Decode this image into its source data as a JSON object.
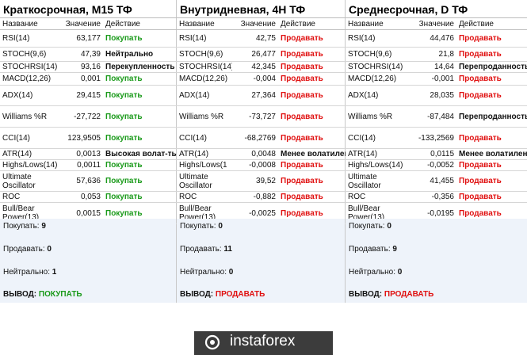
{
  "headers": {
    "name": "Название",
    "value": "Значение",
    "action": "Действие"
  },
  "panels": [
    {
      "title": "Краткосрочная, M15 ТФ",
      "rows": [
        {
          "name": "RSI(14)",
          "value": "63,177",
          "action": "Покупать",
          "kind": "buy"
        },
        {
          "name": "STOCH(9,6)",
          "value": "47,39",
          "action": "Нейтрально",
          "kind": "neutral"
        },
        {
          "name": "STOCHRSI(14)",
          "value": "93,16",
          "action": "Перекупленность",
          "kind": "neutral"
        },
        {
          "name": "MACD(12,26)",
          "value": "0,001",
          "action": "Покупать",
          "kind": "buy"
        },
        {
          "name": "ADX(14)",
          "value": "29,415",
          "action": "Покупать",
          "kind": "buy"
        },
        {
          "name": "Williams %R",
          "value": "-27,722",
          "action": "Покупать",
          "kind": "buy"
        },
        {
          "name": "CCI(14)",
          "value": "123,9505",
          "action": "Покупать",
          "kind": "buy"
        },
        {
          "name": "ATR(14)",
          "value": "0,0013",
          "action": "Высокая волат-ть",
          "kind": "neutral"
        },
        {
          "name": "Highs/Lows(14)",
          "value": "0,0011",
          "action": "Покупать",
          "kind": "buy"
        },
        {
          "name": "Ultimate Oscillator",
          "value": "57,636",
          "action": "Покупать",
          "kind": "buy"
        },
        {
          "name": "ROC",
          "value": "0,053",
          "action": "Покупать",
          "kind": "buy"
        },
        {
          "name": "Bull/Bear Power(13)",
          "value": "0,0015",
          "action": "Покупать",
          "kind": "buy"
        }
      ],
      "summary": {
        "buy_label": "Покупать:",
        "buy": "9",
        "sell_label": "Продавать:",
        "sell": "0",
        "neutral_label": "Нейтрально:",
        "neutral": "1",
        "verdict_label": "ВЫВОД:",
        "verdict": "ПОКУПАТЬ",
        "verdict_kind": "buy"
      }
    },
    {
      "title": "Внутридневная, 4H ТФ",
      "rows": [
        {
          "name": "RSI(14)",
          "value": "42,75",
          "action": "Продавать",
          "kind": "sell"
        },
        {
          "name": "STOCH(9,6)",
          "value": "26,477",
          "action": "Продавать",
          "kind": "sell"
        },
        {
          "name": "STOCHRSI(14)",
          "value": "42,345",
          "action": "Продавать",
          "kind": "sell"
        },
        {
          "name": "MACD(12,26)",
          "value": "-0,004",
          "action": "Продавать",
          "kind": "sell"
        },
        {
          "name": "ADX(14)",
          "value": "27,364",
          "action": "Продавать",
          "kind": "sell"
        },
        {
          "name": "Williams %R",
          "value": "-73,727",
          "action": "Продавать",
          "kind": "sell"
        },
        {
          "name": "CCI(14)",
          "value": "-68,2769",
          "action": "Продавать",
          "kind": "sell"
        },
        {
          "name": "ATR(14)",
          "value": "0,0048",
          "action": "Менее волатилен",
          "kind": "neutral"
        },
        {
          "name": "Highs/Lows(1",
          "value": "-0,0008",
          "action": "Продавать",
          "kind": "sell"
        },
        {
          "name": "Ultimate Oscillator",
          "value": "39,52",
          "action": "Продавать",
          "kind": "sell"
        },
        {
          "name": "ROC",
          "value": "-0,882",
          "action": "Продавать",
          "kind": "sell"
        },
        {
          "name": "Bull/Bear Power(13)",
          "value": "-0,0025",
          "action": "Продавать",
          "kind": "sell"
        }
      ],
      "summary": {
        "buy_label": "Покупать:",
        "buy": "0",
        "sell_label": "Продавать:",
        "sell": "11",
        "neutral_label": "Нейтрально:",
        "neutral": "0",
        "verdict_label": "ВЫВОД:",
        "verdict": "ПРОДАВАТЬ",
        "verdict_kind": "sell"
      }
    },
    {
      "title": "Среднесрочная, D ТФ",
      "rows": [
        {
          "name": "RSI(14)",
          "value": "44,476",
          "action": "Продавать",
          "kind": "sell"
        },
        {
          "name": "STOCH(9,6)",
          "value": "21,8",
          "action": "Продавать",
          "kind": "sell"
        },
        {
          "name": "STOCHRSI(14)",
          "value": "14,64",
          "action": "Перепроданность",
          "kind": "neutral"
        },
        {
          "name": "MACD(12,26)",
          "value": "-0,001",
          "action": "Продавать",
          "kind": "sell"
        },
        {
          "name": "ADX(14)",
          "value": "28,035",
          "action": "Продавать",
          "kind": "sell"
        },
        {
          "name": "Williams %R",
          "value": "-87,484",
          "action": "Перепроданность",
          "kind": "neutral"
        },
        {
          "name": "CCI(14)",
          "value": "-133,2569",
          "action": "Продавать",
          "kind": "sell"
        },
        {
          "name": "ATR(14)",
          "value": "0,0115",
          "action": "Менее волатилен",
          "kind": "neutral"
        },
        {
          "name": "Highs/Lows(14)",
          "value": "-0,0052",
          "action": "Продавать",
          "kind": "sell"
        },
        {
          "name": "Ultimate Oscillator",
          "value": "41,455",
          "action": "Продавать",
          "kind": "sell"
        },
        {
          "name": "ROC",
          "value": "-0,356",
          "action": "Продавать",
          "kind": "sell"
        },
        {
          "name": "Bull/Bear Power(13)",
          "value": "-0,0195",
          "action": "Продавать",
          "kind": "sell"
        }
      ],
      "summary": {
        "buy_label": "Покупать:",
        "buy": "0",
        "sell_label": "Продавать:",
        "sell": "9",
        "neutral_label": "Нейтрально:",
        "neutral": "0",
        "verdict_label": "ВЫВОД:",
        "verdict": "ПРОДАВАТЬ",
        "verdict_kind": "sell"
      }
    }
  ],
  "brand": {
    "logo_text": "instaforex"
  },
  "colors": {
    "buy": "#1a9a1a",
    "sell": "#e01010",
    "summary_bg": "#eef3fa",
    "logo_bg": "#3c3c3c"
  }
}
